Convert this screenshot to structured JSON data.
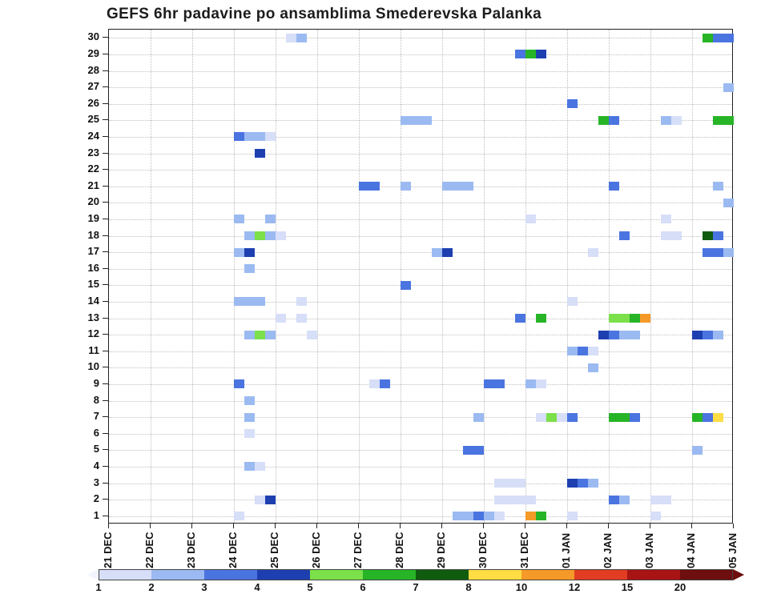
{
  "title": "GEFS 6hr padavine po ansamblima Smederevska Palanka",
  "chart_data": {
    "type": "heatmap",
    "title": "GEFS 6hr padavine po ansamblima Smederevska Palanka",
    "x_tick_labels": [
      "21 DEC",
      "22 DEC",
      "23 DEC",
      "24 DEC",
      "25 DEC",
      "26 DEC",
      "27 DEC",
      "28 DEC",
      "29 DEC",
      "30 DEC",
      "31 DEC",
      "01 JAN",
      "02 JAN",
      "03 JAN",
      "04 JAN",
      "05 JAN"
    ],
    "y_tick_labels": [
      "30",
      "29",
      "28",
      "27",
      "26",
      "25",
      "24",
      "23",
      "22",
      "21",
      "20",
      "19",
      "18",
      "17",
      "16",
      "15",
      "14",
      "13",
      "12",
      "11",
      "10",
      "9",
      "8",
      "7",
      "6",
      "5",
      "4",
      "3",
      "2",
      "1"
    ],
    "n_members": 30,
    "n_cols": 60,
    "cols_per_day": 4,
    "grid": "dotted",
    "style": {
      "frame_color": "#222222",
      "grid_color": "#bfbfbf",
      "text_color": "#111111",
      "background": "#ffffff"
    },
    "palette": {
      "1": "#d7def8",
      "2": "#9bbaf1",
      "3": "#4a74e0",
      "4": "#1e3fb0",
      "5": "#7be04a",
      "6": "#27b427",
      "7": "#0f5c0f",
      "8": "#ffdd44",
      "10": "#f59a28"
    },
    "colorbar": {
      "labels": [
        "1",
        "2",
        "3",
        "4",
        "5",
        "6",
        "7",
        "8",
        "10",
        "12",
        "15",
        "20"
      ],
      "segment_colors": [
        "#d7def8",
        "#9bbaf1",
        "#4a74e0",
        "#1e3fb0",
        "#7be04a",
        "#27b427",
        "#0f5c0f",
        "#ffdd44",
        "#f59a28",
        "#e23c22",
        "#a81414"
      ],
      "left_arrow_color": "#f2f5fe",
      "right_arrow_color": "#6e0e0e"
    },
    "cell_format": "[member, six_hour_column_index_from_21DEC, level]",
    "cells": [
      [
        30,
        17,
        1
      ],
      [
        30,
        18,
        2
      ],
      [
        30,
        57,
        6
      ],
      [
        30,
        58,
        3
      ],
      [
        30,
        59,
        3
      ],
      [
        29,
        39,
        3
      ],
      [
        29,
        40,
        6
      ],
      [
        29,
        41,
        4
      ],
      [
        27,
        59,
        2
      ],
      [
        26,
        44,
        3
      ],
      [
        25,
        28,
        2
      ],
      [
        25,
        29,
        2
      ],
      [
        25,
        30,
        2
      ],
      [
        25,
        47,
        6
      ],
      [
        25,
        48,
        3
      ],
      [
        25,
        53,
        2
      ],
      [
        25,
        54,
        1
      ],
      [
        25,
        58,
        6
      ],
      [
        25,
        59,
        6
      ],
      [
        24,
        12,
        3
      ],
      [
        24,
        13,
        2
      ],
      [
        24,
        14,
        2
      ],
      [
        24,
        15,
        1
      ],
      [
        23,
        14,
        4
      ],
      [
        21,
        24,
        3
      ],
      [
        21,
        25,
        3
      ],
      [
        21,
        28,
        2
      ],
      [
        21,
        32,
        2
      ],
      [
        21,
        33,
        2
      ],
      [
        21,
        34,
        2
      ],
      [
        21,
        48,
        3
      ],
      [
        21,
        58,
        2
      ],
      [
        20,
        59,
        2
      ],
      [
        19,
        12,
        2
      ],
      [
        19,
        15,
        2
      ],
      [
        19,
        40,
        1
      ],
      [
        19,
        53,
        1
      ],
      [
        18,
        13,
        2
      ],
      [
        18,
        14,
        5
      ],
      [
        18,
        15,
        2
      ],
      [
        18,
        16,
        1
      ],
      [
        18,
        49,
        3
      ],
      [
        18,
        53,
        1
      ],
      [
        18,
        54,
        1
      ],
      [
        18,
        57,
        7
      ],
      [
        18,
        58,
        3
      ],
      [
        17,
        12,
        2
      ],
      [
        17,
        13,
        4
      ],
      [
        17,
        31,
        2
      ],
      [
        17,
        32,
        4
      ],
      [
        17,
        46,
        1
      ],
      [
        17,
        57,
        3
      ],
      [
        17,
        58,
        3
      ],
      [
        17,
        59,
        2
      ],
      [
        16,
        13,
        2
      ],
      [
        15,
        28,
        3
      ],
      [
        14,
        12,
        2
      ],
      [
        14,
        13,
        2
      ],
      [
        14,
        14,
        2
      ],
      [
        14,
        18,
        1
      ],
      [
        14,
        44,
        1
      ],
      [
        13,
        16,
        1
      ],
      [
        13,
        18,
        1
      ],
      [
        13,
        39,
        3
      ],
      [
        13,
        41,
        6
      ],
      [
        13,
        48,
        5
      ],
      [
        13,
        49,
        5
      ],
      [
        13,
        50,
        6
      ],
      [
        13,
        51,
        10
      ],
      [
        12,
        13,
        2
      ],
      [
        12,
        14,
        5
      ],
      [
        12,
        15,
        2
      ],
      [
        12,
        19,
        1
      ],
      [
        12,
        47,
        4
      ],
      [
        12,
        48,
        3
      ],
      [
        12,
        49,
        2
      ],
      [
        12,
        50,
        2
      ],
      [
        12,
        56,
        4
      ],
      [
        12,
        57,
        3
      ],
      [
        12,
        58,
        2
      ],
      [
        11,
        44,
        2
      ],
      [
        11,
        45,
        3
      ],
      [
        11,
        46,
        1
      ],
      [
        10,
        46,
        2
      ],
      [
        9,
        12,
        3
      ],
      [
        9,
        25,
        1
      ],
      [
        9,
        26,
        3
      ],
      [
        9,
        36,
        3
      ],
      [
        9,
        37,
        3
      ],
      [
        9,
        40,
        2
      ],
      [
        9,
        41,
        1
      ],
      [
        8,
        13,
        2
      ],
      [
        7,
        13,
        2
      ],
      [
        7,
        35,
        2
      ],
      [
        7,
        41,
        1
      ],
      [
        7,
        42,
        5
      ],
      [
        7,
        43,
        1
      ],
      [
        7,
        44,
        3
      ],
      [
        7,
        48,
        6
      ],
      [
        7,
        49,
        6
      ],
      [
        7,
        50,
        3
      ],
      [
        7,
        56,
        6
      ],
      [
        7,
        57,
        3
      ],
      [
        7,
        58,
        8
      ],
      [
        6,
        13,
        1
      ],
      [
        5,
        34,
        3
      ],
      [
        5,
        35,
        3
      ],
      [
        5,
        56,
        2
      ],
      [
        4,
        13,
        2
      ],
      [
        4,
        14,
        1
      ],
      [
        3,
        37,
        1
      ],
      [
        3,
        38,
        1
      ],
      [
        3,
        39,
        1
      ],
      [
        3,
        44,
        4
      ],
      [
        3,
        45,
        3
      ],
      [
        3,
        46,
        2
      ],
      [
        2,
        14,
        1
      ],
      [
        2,
        15,
        4
      ],
      [
        2,
        37,
        1
      ],
      [
        2,
        38,
        1
      ],
      [
        2,
        39,
        1
      ],
      [
        2,
        40,
        1
      ],
      [
        2,
        48,
        3
      ],
      [
        2,
        49,
        2
      ],
      [
        2,
        52,
        1
      ],
      [
        2,
        53,
        1
      ],
      [
        1,
        12,
        1
      ],
      [
        1,
        33,
        2
      ],
      [
        1,
        34,
        2
      ],
      [
        1,
        35,
        3
      ],
      [
        1,
        36,
        2
      ],
      [
        1,
        37,
        1
      ],
      [
        1,
        40,
        10
      ],
      [
        1,
        41,
        6
      ],
      [
        1,
        44,
        1
      ],
      [
        1,
        52,
        1
      ]
    ]
  }
}
